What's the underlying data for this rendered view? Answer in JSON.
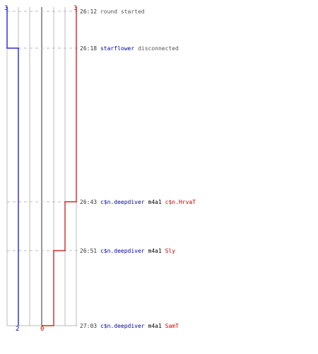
{
  "colors": {
    "team_blue": "#0000cc",
    "team_red": "#cc0000",
    "grid": "#bbbbbb",
    "center_line": "#777777",
    "dash": "#bbbbbb"
  },
  "top_counts": {
    "blue": "3",
    "red": "3"
  },
  "bottom_counts": {
    "blue": "2",
    "red": "0"
  },
  "events": [
    {
      "time": "26:12",
      "parts": [
        {
          "text": "round started",
          "style": "plain"
        }
      ]
    },
    {
      "time": "26:18",
      "parts": [
        {
          "text": "starflower",
          "style": "blue"
        },
        {
          "text": "disconnected",
          "style": "plain"
        }
      ]
    },
    {
      "time": "26:43",
      "parts": [
        {
          "text": "c$n.deepdiver",
          "style": "blue"
        },
        {
          "text": "m4a1",
          "style": "black"
        },
        {
          "text": "c$n.HrvaT",
          "style": "red"
        }
      ]
    },
    {
      "time": "26:51",
      "parts": [
        {
          "text": "c$n.deepdiver",
          "style": "blue"
        },
        {
          "text": "m4a1",
          "style": "black"
        },
        {
          "text": "Sly",
          "style": "red"
        }
      ]
    },
    {
      "time": "27:03",
      "parts": [
        {
          "text": "c$n.deepdiver",
          "style": "blue"
        },
        {
          "text": "m4a1",
          "style": "black"
        },
        {
          "text": "SamT",
          "style": "red"
        }
      ]
    }
  ]
}
